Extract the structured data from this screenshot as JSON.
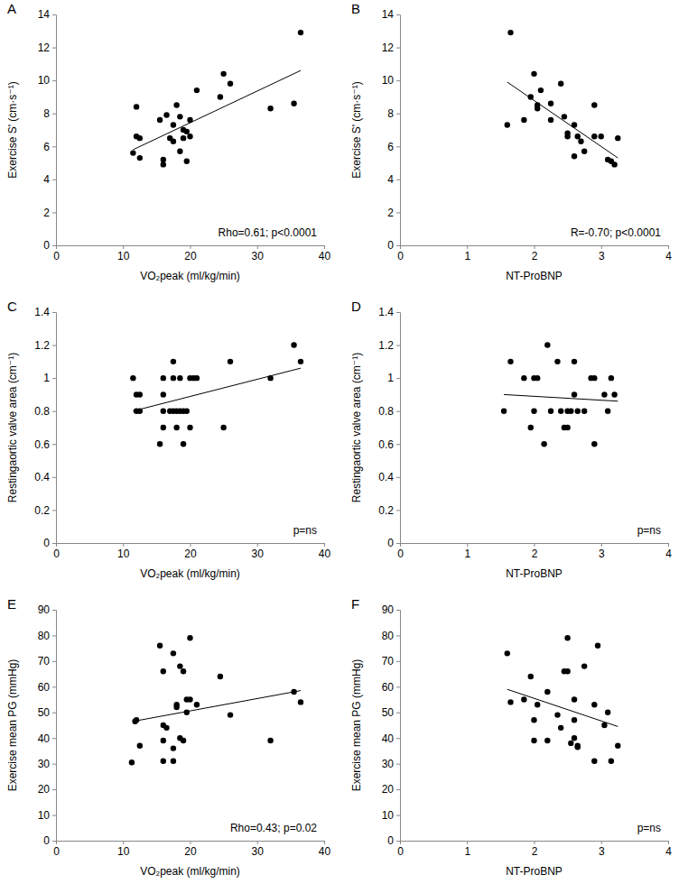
{
  "chart_data": [
    {
      "type": "scatter",
      "panel": "A",
      "x_label": "VO₂peak (ml/kg/min)",
      "y_label": "Exercise  S' (cm·s⁻¹)",
      "annotation": "Rho=0.61; p<0.0001",
      "color": "#000000",
      "marker": "circle",
      "x": [
        11.5,
        12,
        12,
        12.5,
        12.5,
        15.5,
        16,
        16,
        16.5,
        17,
        17.5,
        17.5,
        18,
        18.5,
        18.5,
        19,
        19,
        19.5,
        19.5,
        20,
        20,
        21,
        24.5,
        25,
        26,
        32,
        35.5,
        36.5
      ],
      "values": [
        5.6,
        6.6,
        8.4,
        5.3,
        6.5,
        7.6,
        5.2,
        4.9,
        7.9,
        6.5,
        6.3,
        7.3,
        8.5,
        7.8,
        5.7,
        6.5,
        7.0,
        5.1,
        6.9,
        7.6,
        6.6,
        9.4,
        9.0,
        10.4,
        9.8,
        8.3,
        8.6,
        12.9
      ],
      "fit": {
        "x": [
          11.5,
          36.5
        ],
        "y": [
          5.8,
          10.6
        ]
      },
      "xlim": [
        0,
        40
      ],
      "xticks": [
        0,
        10,
        20,
        30,
        40
      ],
      "ylim": [
        0,
        14
      ],
      "yticks": [
        0,
        2,
        4,
        6,
        8,
        10,
        12,
        14
      ]
    },
    {
      "type": "scatter",
      "panel": "B",
      "x_label": "NT-ProBNP",
      "y_label": "Exercise  S' (cm·s⁻¹)",
      "annotation": "R=-0.70; p<0.0001",
      "color": "#000000",
      "marker": "circle",
      "x": [
        1.6,
        1.65,
        1.85,
        1.95,
        2.0,
        2.05,
        2.05,
        2.1,
        2.25,
        2.25,
        2.4,
        2.45,
        2.5,
        2.5,
        2.6,
        2.6,
        2.65,
        2.7,
        2.75,
        2.9,
        2.9,
        3.0,
        3.1,
        3.15,
        3.2,
        3.25
      ],
      "values": [
        7.3,
        12.9,
        7.6,
        9.0,
        10.4,
        8.3,
        8.5,
        9.4,
        7.6,
        8.6,
        9.8,
        7.8,
        6.8,
        6.6,
        7.3,
        5.4,
        6.6,
        6.3,
        5.7,
        8.5,
        6.6,
        6.6,
        5.2,
        5.1,
        4.9,
        6.5
      ],
      "fit": {
        "x": [
          1.6,
          3.25
        ],
        "y": [
          9.9,
          5.3
        ]
      },
      "xlim": [
        0,
        4
      ],
      "xticks": [
        0,
        1,
        2,
        3,
        4
      ],
      "ylim": [
        0,
        14
      ],
      "yticks": [
        0,
        2,
        4,
        6,
        8,
        10,
        12,
        14
      ]
    },
    {
      "type": "scatter",
      "panel": "C",
      "x_label": "VO₂peak (ml/kg/min)",
      "y_label": "Restingaortic valve area (cm⁻¹)",
      "annotation": "p=ns",
      "color": "#000000",
      "marker": "circle",
      "x": [
        11.5,
        12,
        12,
        12.5,
        12.5,
        15.5,
        16,
        16,
        16,
        16,
        17,
        17.5,
        17.5,
        17.5,
        18,
        18,
        18.5,
        18.5,
        19,
        19,
        19.5,
        20,
        20,
        20.5,
        21,
        25,
        26,
        32,
        35.5,
        36.5
      ],
      "values": [
        1.0,
        0.9,
        0.8,
        0.9,
        0.8,
        0.6,
        1.0,
        0.9,
        0.7,
        0.8,
        0.8,
        1.0,
        1.1,
        0.8,
        0.7,
        0.8,
        1.0,
        0.8,
        0.8,
        0.6,
        0.8,
        1.0,
        0.7,
        1.0,
        1.0,
        0.7,
        1.1,
        1.0,
        1.2,
        1.1
      ],
      "fit": {
        "x": [
          11.5,
          36.5
        ],
        "y": [
          0.8,
          1.06
        ]
      },
      "xlim": [
        0,
        40
      ],
      "xticks": [
        0,
        10,
        20,
        30,
        40
      ],
      "ylim": [
        0,
        1.4
      ],
      "yticks": [
        0,
        0.2,
        0.4,
        0.6,
        0.8,
        1,
        1.2,
        1.4
      ]
    },
    {
      "type": "scatter",
      "panel": "D",
      "x_label": "NT-ProBNP",
      "y_label": "Restingaortic valve area (cm⁻¹)",
      "annotation": "p=ns",
      "color": "#000000",
      "marker": "circle",
      "x": [
        1.55,
        1.65,
        1.85,
        1.95,
        2.0,
        2.05,
        2.0,
        2.15,
        2.2,
        2.25,
        2.35,
        2.4,
        2.45,
        2.5,
        2.5,
        2.55,
        2.6,
        2.6,
        2.65,
        2.75,
        2.85,
        2.9,
        2.9,
        3.05,
        3.1,
        3.15,
        3.2
      ],
      "values": [
        0.8,
        1.1,
        1.0,
        0.7,
        1.0,
        1.0,
        0.8,
        0.6,
        1.2,
        0.8,
        1.1,
        0.8,
        0.7,
        0.7,
        0.8,
        0.8,
        1.1,
        0.9,
        0.8,
        0.8,
        1.0,
        1.0,
        0.6,
        0.9,
        0.8,
        1.0,
        0.9
      ],
      "fit": {
        "x": [
          1.55,
          3.25
        ],
        "y": [
          0.9,
          0.86
        ]
      },
      "xlim": [
        0,
        4
      ],
      "xticks": [
        0,
        1,
        2,
        3,
        4
      ],
      "ylim": [
        0,
        1.4
      ],
      "yticks": [
        0,
        0.2,
        0.4,
        0.6,
        0.8,
        1,
        1.2,
        1.4
      ]
    },
    {
      "type": "scatter",
      "panel": "E",
      "x_label": "VO₂peak (ml/kg/min)",
      "y_label": "Exercise mean PG (mmHg)",
      "annotation": "Rho=0.43; p=0.02",
      "color": "#000000",
      "marker": "circle",
      "x": [
        11.3,
        11.8,
        12,
        12.5,
        15.5,
        16,
        16,
        16,
        16,
        16.5,
        17.5,
        17.5,
        17.5,
        18,
        18,
        18.5,
        18.5,
        19,
        19,
        19.5,
        19.5,
        20,
        20,
        21,
        24.5,
        26,
        32,
        35.5,
        36.5
      ],
      "values": [
        30.5,
        46.5,
        47,
        37,
        76,
        31,
        39,
        45,
        66,
        44,
        31,
        73,
        36,
        53,
        52,
        40,
        68,
        66,
        39,
        50,
        55,
        79,
        55,
        53,
        64,
        49,
        39,
        58,
        54
      ],
      "fit": {
        "x": [
          11.5,
          36.5
        ],
        "y": [
          46.5,
          58.5
        ]
      },
      "xlim": [
        0,
        40
      ],
      "xticks": [
        0,
        10,
        20,
        30,
        40
      ],
      "ylim": [
        0,
        90
      ],
      "yticks": [
        0,
        10,
        20,
        30,
        40,
        50,
        60,
        70,
        80,
        90
      ]
    },
    {
      "type": "scatter",
      "panel": "F",
      "x_label": "NT-ProBNP",
      "y_label": "Exercise mean PG (mmHg)",
      "annotation": "p=ns",
      "color": "#000000",
      "marker": "circle",
      "x": [
        1.6,
        1.65,
        1.85,
        1.95,
        2.0,
        2.0,
        2.05,
        2.2,
        2.2,
        2.35,
        2.4,
        2.45,
        2.5,
        2.5,
        2.55,
        2.6,
        2.6,
        2.6,
        2.65,
        2.65,
        2.75,
        2.9,
        2.9,
        2.95,
        3.05,
        3.1,
        3.15,
        3.25
      ],
      "values": [
        73,
        54,
        55,
        64,
        47,
        39,
        53,
        39,
        58,
        49,
        44,
        66,
        79,
        66,
        38,
        40,
        55,
        47,
        37,
        36.5,
        68,
        31,
        53,
        76,
        45,
        50,
        31,
        37
      ],
      "fit": {
        "x": [
          1.6,
          3.25
        ],
        "y": [
          59,
          44.5
        ]
      },
      "xlim": [
        0,
        4
      ],
      "xticks": [
        0,
        1,
        2,
        3,
        4
      ],
      "ylim": [
        0,
        90
      ],
      "yticks": [
        0,
        10,
        20,
        30,
        40,
        50,
        60,
        70,
        80,
        90
      ]
    }
  ]
}
